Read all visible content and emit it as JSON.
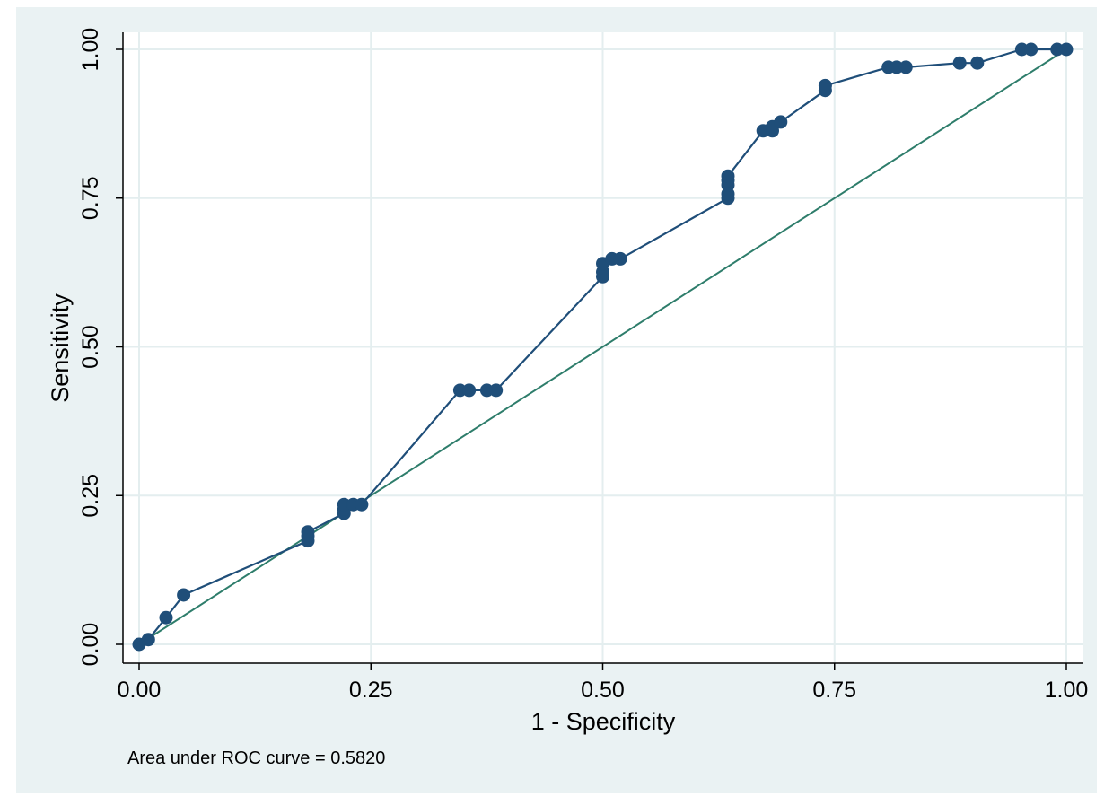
{
  "chart_data": {
    "type": "line",
    "xlabel": "1 - Specificity",
    "ylabel": "Sensitivity",
    "xlim": [
      0,
      1
    ],
    "ylim": [
      0,
      1
    ],
    "xticks": [
      "0.00",
      "0.25",
      "0.50",
      "0.75",
      "1.00"
    ],
    "yticks": [
      "0.00",
      "0.25",
      "0.50",
      "0.75",
      "1.00"
    ],
    "grid": true,
    "note": "Area under ROC curve = 0.5820",
    "colors": {
      "curve": "#1f4e79",
      "reference": "#2e7d6b",
      "plot_bg": "#ffffff",
      "outer_bg": "#eaf2f3",
      "grid": "#e4eeef"
    },
    "series": [
      {
        "points": [
          [
            0.0,
            0.0
          ],
          [
            0.01,
            0.008
          ],
          [
            0.029,
            0.045
          ],
          [
            0.048,
            0.083
          ],
          [
            0.182,
            0.174
          ],
          [
            0.182,
            0.182
          ],
          [
            0.182,
            0.189
          ],
          [
            0.221,
            0.22
          ],
          [
            0.221,
            0.227
          ],
          [
            0.221,
            0.235
          ],
          [
            0.231,
            0.235
          ],
          [
            0.24,
            0.235
          ],
          [
            0.346,
            0.427
          ],
          [
            0.356,
            0.427
          ],
          [
            0.375,
            0.427
          ],
          [
            0.385,
            0.427
          ],
          [
            0.5,
            0.618
          ],
          [
            0.5,
            0.626
          ],
          [
            0.5,
            0.64
          ],
          [
            0.51,
            0.648
          ],
          [
            0.519,
            0.648
          ],
          [
            0.635,
            0.75
          ],
          [
            0.635,
            0.757
          ],
          [
            0.635,
            0.772
          ],
          [
            0.635,
            0.78
          ],
          [
            0.635,
            0.787
          ],
          [
            0.673,
            0.863
          ],
          [
            0.683,
            0.863
          ],
          [
            0.683,
            0.87
          ],
          [
            0.692,
            0.878
          ],
          [
            0.74,
            0.931
          ],
          [
            0.74,
            0.939
          ],
          [
            0.808,
            0.97
          ],
          [
            0.817,
            0.97
          ],
          [
            0.827,
            0.97
          ],
          [
            0.885,
            0.977
          ],
          [
            0.904,
            0.977
          ],
          [
            0.952,
            1.0
          ],
          [
            0.962,
            1.0
          ],
          [
            0.99,
            1.0
          ],
          [
            1.0,
            1.0
          ]
        ]
      }
    ],
    "reference_line": [
      [
        0,
        0
      ],
      [
        1,
        1
      ]
    ]
  }
}
